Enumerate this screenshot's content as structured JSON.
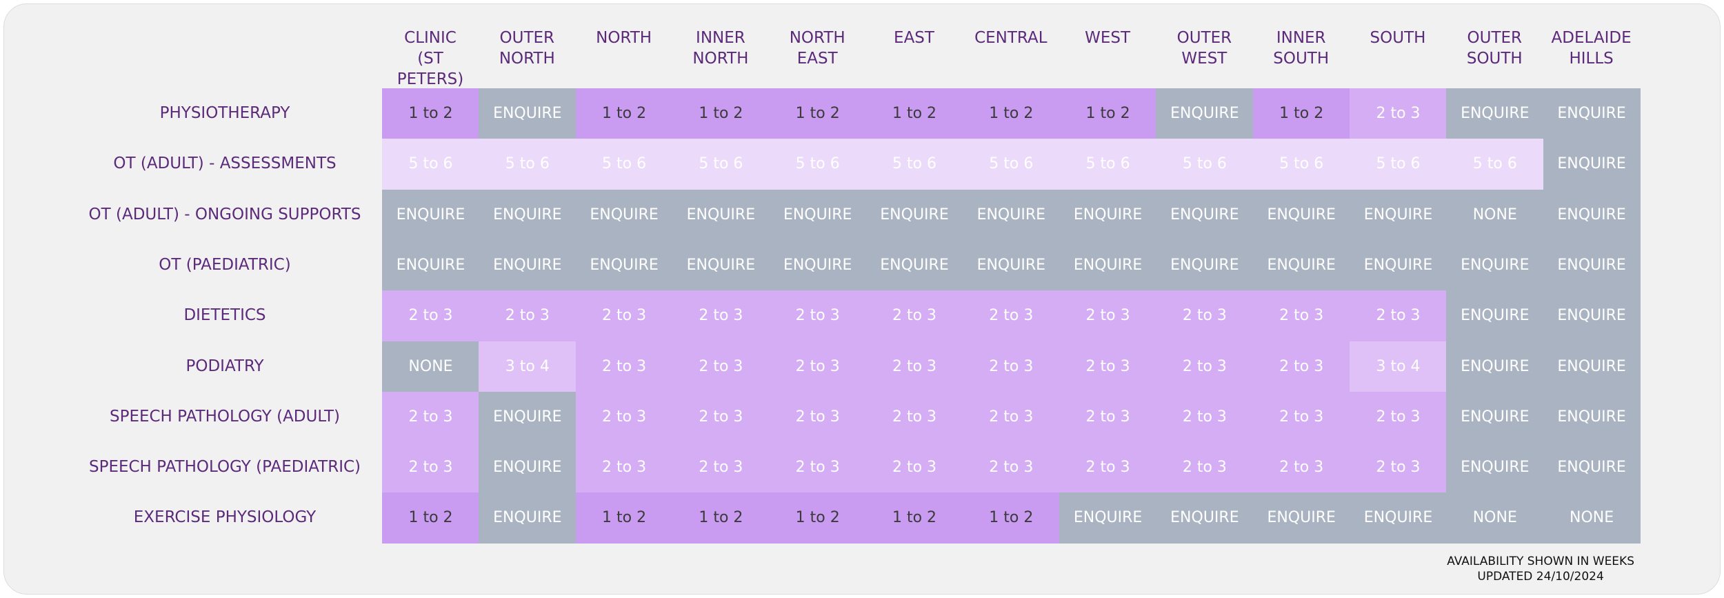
{
  "table": {
    "columns": [
      "CLINIC\n(ST PETERS)",
      "OUTER\nNORTH",
      "NORTH",
      "INNER\nNORTH",
      "NORTH\nEAST",
      "EAST",
      "CENTRAL",
      "WEST",
      "OUTER\nWEST",
      "INNER\nSOUTH",
      "SOUTH",
      "OUTER\nSOUTH",
      "ADELAIDE\nHILLS"
    ],
    "rows": [
      {
        "label": "PHYSIOTHERAPY",
        "cells": [
          "1 to 2",
          "ENQUIRE",
          "1 to 2",
          "1 to 2",
          "1 to 2",
          "1 to 2",
          "1 to 2",
          "1 to 2",
          "ENQUIRE",
          "1 to 2",
          "2 to 3",
          "ENQUIRE",
          "ENQUIRE"
        ],
        "colors": [
          "#c99cf2",
          "#aab3c2",
          "#c99cf2",
          "#c99cf2",
          "#c99cf2",
          "#c99cf2",
          "#c99cf2",
          "#c99cf2",
          "#aab3c2",
          "#c99cf2",
          "#d4adf4",
          "#aab3c2",
          "#aab3c2"
        ]
      },
      {
        "label": "OT (ADULT) - ASSESSMENTS",
        "cells": [
          "5 to 6",
          "5 to 6",
          "5 to 6",
          "5 to 6",
          "5 to 6",
          "5 to 6",
          "5 to 6",
          "5 to 6",
          "5 to 6",
          "5 to 6",
          "5 to 6",
          "5 to 6",
          "ENQUIRE"
        ],
        "colors": [
          "#ebdaf9",
          "#ebdaf9",
          "#ebdaf9",
          "#ebdaf9",
          "#ebdaf9",
          "#ebdaf9",
          "#ebdaf9",
          "#ebdaf9",
          "#ebdaf9",
          "#ebdaf9",
          "#ebdaf9",
          "#ebdaf9",
          "#aab3c2"
        ]
      },
      {
        "label": "OT (ADULT) - ONGOING SUPPORTS",
        "cells": [
          "ENQUIRE",
          "ENQUIRE",
          "ENQUIRE",
          "ENQUIRE",
          "ENQUIRE",
          "ENQUIRE",
          "ENQUIRE",
          "ENQUIRE",
          "ENQUIRE",
          "ENQUIRE",
          "ENQUIRE",
          "NONE",
          "ENQUIRE"
        ],
        "colors": [
          "#aab3c2",
          "#aab3c2",
          "#aab3c2",
          "#aab3c2",
          "#aab3c2",
          "#aab3c2",
          "#aab3c2",
          "#aab3c2",
          "#aab3c2",
          "#aab3c2",
          "#aab3c2",
          "#aab3c2",
          "#aab3c2"
        ]
      },
      {
        "label": "OT (PAEDIATRIC)",
        "cells": [
          "ENQUIRE",
          "ENQUIRE",
          "ENQUIRE",
          "ENQUIRE",
          "ENQUIRE",
          "ENQUIRE",
          "ENQUIRE",
          "ENQUIRE",
          "ENQUIRE",
          "ENQUIRE",
          "ENQUIRE",
          "ENQUIRE",
          "ENQUIRE"
        ],
        "colors": [
          "#aab3c2",
          "#aab3c2",
          "#aab3c2",
          "#aab3c2",
          "#aab3c2",
          "#aab3c2",
          "#aab3c2",
          "#aab3c2",
          "#aab3c2",
          "#aab3c2",
          "#aab3c2",
          "#aab3c2",
          "#aab3c2"
        ]
      },
      {
        "label": "DIETETICS",
        "cells": [
          "2 to 3",
          "2 to 3",
          "2 to 3",
          "2 to 3",
          "2 to 3",
          "2 to 3",
          "2 to 3",
          "2 to 3",
          "2 to 3",
          "2 to 3",
          "2 to 3",
          "ENQUIRE",
          "ENQUIRE"
        ],
        "colors": [
          "#d4adf4",
          "#d4adf4",
          "#d4adf4",
          "#d4adf4",
          "#d4adf4",
          "#d4adf4",
          "#d4adf4",
          "#d4adf4",
          "#d4adf4",
          "#d4adf4",
          "#d4adf4",
          "#aab3c2",
          "#aab3c2"
        ]
      },
      {
        "label": "PODIATRY",
        "cells": [
          "NONE",
          "3 to 4",
          "2 to 3",
          "2 to 3",
          "2 to 3",
          "2 to 3",
          "2 to 3",
          "2 to 3",
          "2 to 3",
          "2 to 3",
          "3 to 4",
          "ENQUIRE",
          "ENQUIRE"
        ],
        "colors": [
          "#aab3c2",
          "#dfc0f7",
          "#d4adf4",
          "#d4adf4",
          "#d4adf4",
          "#d4adf4",
          "#d4adf4",
          "#d4adf4",
          "#d4adf4",
          "#d4adf4",
          "#dfc0f7",
          "#aab3c2",
          "#aab3c2"
        ]
      },
      {
        "label": "SPEECH PATHOLOGY (ADULT)",
        "cells": [
          "2 to 3",
          "ENQUIRE",
          "2 to 3",
          "2 to 3",
          "2 to 3",
          "2 to 3",
          "2 to 3",
          "2 to 3",
          "2 to 3",
          "2 to 3",
          "2 to 3",
          "ENQUIRE",
          "ENQUIRE"
        ],
        "colors": [
          "#d4adf4",
          "#aab3c2",
          "#d4adf4",
          "#d4adf4",
          "#d4adf4",
          "#d4adf4",
          "#d4adf4",
          "#d4adf4",
          "#d4adf4",
          "#d4adf4",
          "#d4adf4",
          "#aab3c2",
          "#aab3c2"
        ]
      },
      {
        "label": "SPEECH PATHOLOGY (PAEDIATRIC)",
        "cells": [
          "2 to 3",
          "ENQUIRE",
          "2 to 3",
          "2 to 3",
          "2 to 3",
          "2 to 3",
          "2 to 3",
          "2 to 3",
          "2 to 3",
          "2 to 3",
          "2 to 3",
          "ENQUIRE",
          "ENQUIRE"
        ],
        "colors": [
          "#d4adf4",
          "#aab3c2",
          "#d4adf4",
          "#d4adf4",
          "#d4adf4",
          "#d4adf4",
          "#d4adf4",
          "#d4adf4",
          "#d4adf4",
          "#d4adf4",
          "#d4adf4",
          "#aab3c2",
          "#aab3c2"
        ]
      },
      {
        "label": "EXERCISE PHYSIOLOGY",
        "cells": [
          "1 to 2",
          "ENQUIRE",
          "1 to 2",
          "1 to 2",
          "1 to 2",
          "1 to 2",
          "1 to 2",
          "ENQUIRE",
          "ENQUIRE",
          "ENQUIRE",
          "ENQUIRE",
          "NONE",
          "NONE"
        ],
        "colors": [
          "#c99cf2",
          "#aab3c2",
          "#c99cf2",
          "#c99cf2",
          "#c99cf2",
          "#c99cf2",
          "#c99cf2",
          "#aab3c2",
          "#aab3c2",
          "#aab3c2",
          "#aab3c2",
          "#aab3c2",
          "#aab3c2"
        ]
      }
    ]
  },
  "footer": {
    "lines": [
      "AVAILABILITY SHOWN IN WEEKS",
      "UPDATED 24/10/2024"
    ]
  }
}
